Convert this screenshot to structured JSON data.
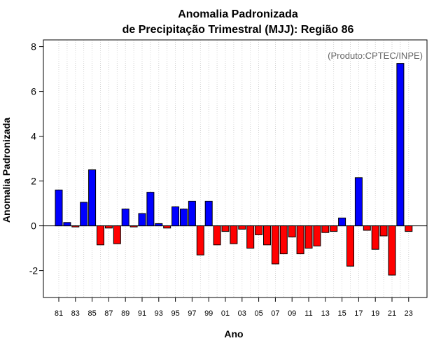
{
  "chart_data": {
    "type": "bar",
    "title_line1": "Anomalia Padronizada",
    "title_line2": "de Precipitação Trimestral (MJJ): Região 86",
    "xlabel": "Ano",
    "ylabel": "Anomalia Padronizada",
    "credit": "(Produto:CPTEC/INPE)",
    "ylim": [
      -3.2,
      8.3
    ],
    "yticks": [
      -2,
      0,
      2,
      4,
      6,
      8
    ],
    "xtick_labels": [
      "81",
      "83",
      "85",
      "87",
      "89",
      "91",
      "93",
      "95",
      "97",
      "99",
      "01",
      "03",
      "05",
      "07",
      "09",
      "11",
      "13",
      "15",
      "17",
      "19",
      "21",
      "23"
    ],
    "years": [
      1981,
      1982,
      1983,
      1984,
      1985,
      1986,
      1987,
      1988,
      1989,
      1990,
      1991,
      1992,
      1993,
      1994,
      1995,
      1996,
      1997,
      1998,
      1999,
      2000,
      2001,
      2002,
      2003,
      2004,
      2005,
      2006,
      2007,
      2008,
      2009,
      2010,
      2011,
      2012,
      2013,
      2014,
      2015,
      2016,
      2017,
      2018,
      2019,
      2020,
      2021,
      2022,
      2023
    ],
    "values": [
      1.6,
      0.15,
      -0.05,
      1.05,
      2.5,
      -0.85,
      -0.1,
      -0.8,
      0.75,
      -0.05,
      0.55,
      1.5,
      0.1,
      -0.1,
      0.85,
      0.75,
      1.1,
      -1.3,
      1.1,
      -0.85,
      -0.25,
      -0.8,
      -0.15,
      -1.0,
      -0.4,
      -0.85,
      -1.7,
      -1.25,
      -0.5,
      -1.25,
      -1.0,
      -0.9,
      -0.3,
      -0.25,
      0.35,
      -1.8,
      2.15,
      -0.2,
      -1.05,
      -0.45,
      -2.2,
      7.25,
      -0.25
    ],
    "positive_color": "#0000ff",
    "negative_color": "#ff0000"
  }
}
